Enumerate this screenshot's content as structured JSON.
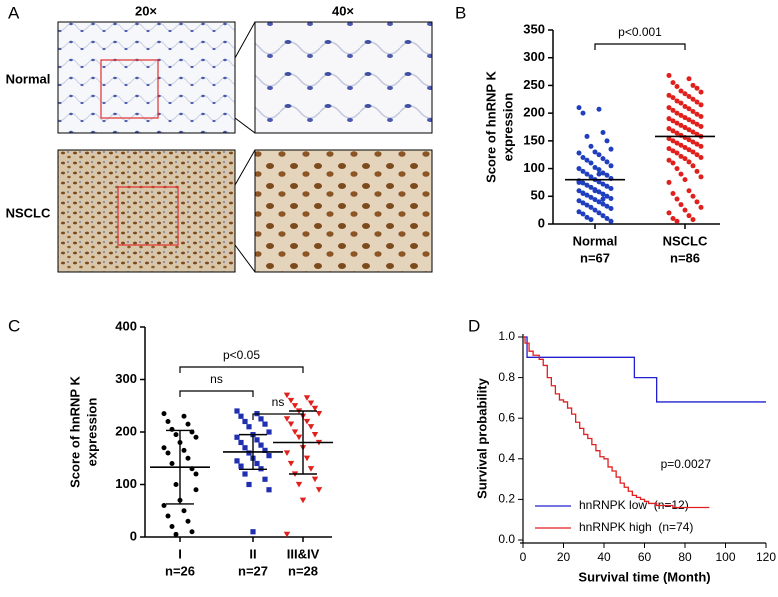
{
  "panel_labels": [
    "A",
    "B",
    "C",
    "D"
  ],
  "panel_a": {
    "column_headers": [
      "20×",
      "40×"
    ],
    "row_labels": [
      "Normal",
      "NSCLC"
    ]
  },
  "chart_data": [
    {
      "type": "strip",
      "ylabel_lines": [
        "Score of hnRNP K",
        "expression"
      ],
      "categories": [
        "Normal",
        "NSCLC"
      ],
      "category_counts": [
        "n=67",
        "n=86"
      ],
      "series": [
        {
          "color": "#1f3fbf",
          "marker": "circle",
          "values": [
            210,
            207,
            200,
            165,
            158,
            150,
            140,
            135,
            130,
            128,
            125,
            120,
            118,
            115,
            112,
            110,
            105,
            102,
            100,
            98,
            95,
            92,
            90,
            88,
            85,
            82,
            80,
            78,
            76,
            74,
            72,
            70,
            68,
            66,
            64,
            62,
            60,
            58,
            56,
            54,
            52,
            50,
            48,
            46,
            44,
            42,
            40,
            38,
            36,
            34,
            32,
            30,
            28,
            25,
            22,
            20,
            18,
            15,
            12,
            10,
            8,
            5,
            60,
            75,
            90,
            55,
            45
          ]
        },
        {
          "color": "#e0201c",
          "marker": "circle",
          "values": [
            268,
            262,
            255,
            250,
            248,
            245,
            240,
            238,
            235,
            232,
            230,
            228,
            225,
            222,
            220,
            218,
            215,
            212,
            210,
            208,
            205,
            203,
            200,
            198,
            196,
            194,
            192,
            190,
            188,
            186,
            184,
            182,
            180,
            178,
            176,
            174,
            172,
            170,
            168,
            166,
            164,
            162,
            160,
            158,
            156,
            154,
            152,
            150,
            148,
            146,
            144,
            142,
            140,
            138,
            136,
            134,
            132,
            130,
            128,
            125,
            122,
            120,
            118,
            115,
            112,
            110,
            105,
            100,
            95,
            90,
            85,
            80,
            75,
            60,
            55,
            50,
            45,
            40,
            35,
            30,
            25,
            20,
            15,
            10,
            8,
            5
          ]
        }
      ],
      "means": [
        80,
        158
      ],
      "ylim": [
        0,
        350
      ],
      "yticks": [
        0,
        50,
        100,
        150,
        200,
        250,
        300,
        350
      ],
      "comparisons": [
        {
          "between": [
            "Normal",
            "NSCLC"
          ],
          "label": "p<0.001"
        }
      ]
    },
    {
      "type": "strip",
      "ylabel_lines": [
        "Score of hnRNP K",
        "expression"
      ],
      "categories": [
        "I",
        "II",
        "III&IV"
      ],
      "category_counts": [
        "n=26",
        "n=27",
        "n=28"
      ],
      "series": [
        {
          "color": "#000000",
          "marker": "circle",
          "values": [
            235,
            230,
            220,
            215,
            205,
            200,
            195,
            190,
            180,
            170,
            165,
            160,
            150,
            140,
            130,
            100,
            90,
            70,
            60,
            50,
            40,
            30,
            20,
            10,
            5,
            120
          ]
        },
        {
          "color": "#1f2fb0",
          "marker": "square",
          "values": [
            240,
            235,
            230,
            225,
            220,
            215,
            210,
            200,
            195,
            190,
            185,
            180,
            175,
            170,
            165,
            160,
            155,
            150,
            145,
            140,
            135,
            130,
            120,
            110,
            100,
            90,
            10
          ]
        },
        {
          "color": "#e0201c",
          "marker": "triangle-down",
          "values": [
            270,
            265,
            260,
            255,
            250,
            245,
            240,
            235,
            230,
            225,
            220,
            215,
            210,
            200,
            195,
            190,
            180,
            170,
            160,
            150,
            140,
            130,
            120,
            110,
            100,
            90,
            70,
            5
          ]
        }
      ],
      "means": [
        133,
        162,
        180
      ],
      "errors": [
        70,
        33,
        60
      ],
      "ylim": [
        0,
        400
      ],
      "yticks": [
        0,
        100,
        200,
        300,
        400
      ],
      "comparisons": [
        {
          "between": [
            "I",
            "III&IV"
          ],
          "label": "p<0.05"
        },
        {
          "between": [
            "I",
            "II"
          ],
          "label": "ns"
        },
        {
          "between": [
            "II",
            "III&IV"
          ],
          "label": "ns"
        }
      ]
    },
    {
      "type": "km",
      "xlabel": "Survival time (Month)",
      "ylabel": "Survival probability",
      "annotation": "p=0.0027",
      "step": "post",
      "legend": "lower left",
      "xlim": [
        0,
        120
      ],
      "xticks": [
        0,
        20,
        40,
        60,
        80,
        100,
        120
      ],
      "ylim": [
        0,
        1
      ],
      "yticks": [
        {
          "value": 0,
          "label": "0.0"
        },
        {
          "value": 0.2,
          "label": "0.2"
        },
        {
          "value": 0.4,
          "label": "0.4"
        },
        {
          "value": 0.6,
          "label": "0.6"
        },
        {
          "value": 0.8,
          "label": "0.8"
        },
        {
          "value": 1,
          "label": "1.0"
        }
      ],
      "series": [
        {
          "name": "hnRNPK low  (n=12)",
          "color": "#2020d0",
          "x": [
            0,
            2,
            55,
            66,
            120
          ],
          "values": [
            1,
            0.9,
            0.8,
            0.68,
            0.68
          ]
        },
        {
          "name": "hnRNPK high  (n=74)",
          "color": "#e02020",
          "x": [
            0,
            1,
            3,
            5,
            8,
            10,
            12,
            14,
            16,
            18,
            20,
            22,
            24,
            26,
            28,
            30,
            32,
            34,
            36,
            38,
            40,
            42,
            44,
            46,
            48,
            50,
            52,
            54,
            56,
            58,
            60,
            62,
            66,
            70,
            74,
            80,
            92
          ],
          "values": [
            1,
            0.97,
            0.93,
            0.91,
            0.89,
            0.86,
            0.8,
            0.76,
            0.72,
            0.69,
            0.68,
            0.65,
            0.62,
            0.58,
            0.55,
            0.52,
            0.5,
            0.47,
            0.44,
            0.41,
            0.4,
            0.36,
            0.34,
            0.31,
            0.28,
            0.26,
            0.24,
            0.22,
            0.21,
            0.2,
            0.19,
            0.18,
            0.17,
            0.17,
            0.16,
            0.16,
            0.16
          ]
        }
      ]
    }
  ]
}
